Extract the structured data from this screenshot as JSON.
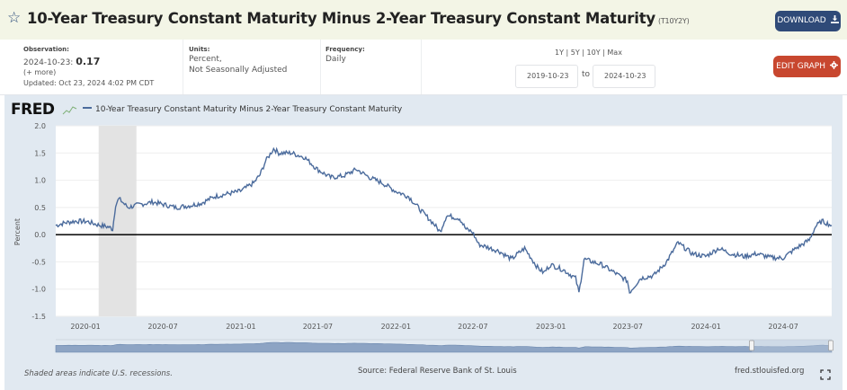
{
  "header": {
    "title": "10-Year Treasury Constant Maturity Minus 2-Year Treasury Constant Maturity",
    "series_id": "(T10Y2Y)",
    "download_label": "DOWNLOAD",
    "star_icon": "star-icon",
    "download_icon": "download-icon"
  },
  "info": {
    "observation_label": "Observation:",
    "observation_date": "2024-10-23:",
    "observation_value": "0.17",
    "more_link": "(+ more)",
    "updated": "Updated: Oct 23, 2024 4:02 PM CDT",
    "units_label": "Units:",
    "units_line1": "Percent,",
    "units_line2": "Not Seasonally Adjusted",
    "frequency_label": "Frequency:",
    "frequency_value": "Daily",
    "range_presets": [
      "1Y",
      "5Y",
      "10Y",
      "Max"
    ],
    "range_separator": " | ",
    "start_date": "2019-10-23",
    "to_label": "to",
    "end_date": "2024-10-23",
    "edit_label": "EDIT GRAPH",
    "edit_icon": "gear-icon"
  },
  "footer": {
    "recession_note": "Shaded areas indicate U.S. recessions.",
    "source": "Source: Federal Reserve Bank of St. Louis",
    "url": "fred.stlouisfed.org",
    "fullscreen_icon": "fullscreen-icon"
  },
  "colors": {
    "line": "#4b6b9c",
    "zero_line": "#000000",
    "recession": "#e3e3e3",
    "download_btn": "#2f4a78",
    "edit_btn": "#c8472f"
  },
  "chart_data": {
    "type": "line",
    "title": "10-Year Treasury Constant Maturity Minus 2-Year Treasury Constant Maturity",
    "logo": "FRED",
    "legend": [
      "10-Year Treasury Constant Maturity Minus 2-Year Treasury Constant Maturity"
    ],
    "legend_position": "top-left",
    "xlabel": "",
    "ylabel": "Percent",
    "xlim": [
      "2019-10-23",
      "2024-10-23"
    ],
    "ylim": [
      -1.5,
      2.0
    ],
    "yticks": [
      2.0,
      1.5,
      1.0,
      0.5,
      0.0,
      -0.5,
      -1.0,
      -1.5
    ],
    "ytick_labels": [
      "2.0",
      "1.5",
      "1.0",
      "0.5",
      "0.0",
      "-0.5",
      "-1.0",
      "-1.5"
    ],
    "xticks": [
      "2020-01",
      "2020-07",
      "2021-01",
      "2021-07",
      "2022-01",
      "2022-07",
      "2023-01",
      "2023-07",
      "2024-01",
      "2024-07"
    ],
    "grid": true,
    "recessions": [
      [
        "2020-02-01",
        "2020-04-30"
      ]
    ],
    "reference_line": 0,
    "series": [
      {
        "name": "T10Y2Y",
        "x": [
          "2019-10-23",
          "2019-11-15",
          "2019-12-10",
          "2020-01-05",
          "2020-01-31",
          "2020-02-25",
          "2020-03-05",
          "2020-03-12",
          "2020-03-20",
          "2020-04-10",
          "2020-05-05",
          "2020-06-08",
          "2020-06-30",
          "2020-07-31",
          "2020-08-31",
          "2020-09-30",
          "2020-10-31",
          "2020-11-30",
          "2020-12-31",
          "2021-01-31",
          "2021-02-15",
          "2021-02-28",
          "2021-03-19",
          "2021-03-31",
          "2021-04-30",
          "2021-05-31",
          "2021-06-30",
          "2021-07-31",
          "2021-08-31",
          "2021-09-30",
          "2021-10-31",
          "2021-11-30",
          "2021-12-31",
          "2022-01-31",
          "2022-02-28",
          "2022-03-31",
          "2022-04-15",
          "2022-04-30",
          "2022-05-31",
          "2022-06-15",
          "2022-06-30",
          "2022-07-15",
          "2022-07-31",
          "2022-08-31",
          "2022-09-30",
          "2022-10-15",
          "2022-10-31",
          "2022-11-30",
          "2022-12-15",
          "2022-12-31",
          "2023-01-31",
          "2023-02-28",
          "2023-03-08",
          "2023-03-20",
          "2023-04-30",
          "2023-05-31",
          "2023-06-30",
          "2023-07-05",
          "2023-07-31",
          "2023-08-31",
          "2023-09-30",
          "2023-10-27",
          "2023-11-30",
          "2023-12-31",
          "2024-01-31",
          "2024-02-29",
          "2024-03-31",
          "2024-04-30",
          "2024-05-31",
          "2024-06-30",
          "2024-07-31",
          "2024-08-31",
          "2024-09-15",
          "2024-09-30",
          "2024-10-23"
        ],
        "values": [
          0.17,
          0.22,
          0.25,
          0.24,
          0.18,
          0.14,
          0.1,
          0.55,
          0.66,
          0.5,
          0.55,
          0.6,
          0.56,
          0.5,
          0.53,
          0.58,
          0.7,
          0.75,
          0.8,
          0.95,
          1.1,
          1.35,
          1.58,
          1.5,
          1.5,
          1.42,
          1.2,
          1.05,
          1.08,
          1.2,
          1.05,
          0.95,
          0.8,
          0.7,
          0.45,
          0.2,
          0.05,
          0.35,
          0.3,
          0.1,
          0.05,
          -0.18,
          -0.22,
          -0.3,
          -0.45,
          -0.35,
          -0.25,
          -0.6,
          -0.7,
          -0.55,
          -0.65,
          -0.8,
          -1.07,
          -0.45,
          -0.55,
          -0.7,
          -0.85,
          -1.06,
          -0.8,
          -0.75,
          -0.5,
          -0.15,
          -0.35,
          -0.4,
          -0.25,
          -0.35,
          -0.4,
          -0.35,
          -0.42,
          -0.43,
          -0.25,
          -0.1,
          0.15,
          0.25,
          0.17
        ]
      }
    ]
  }
}
